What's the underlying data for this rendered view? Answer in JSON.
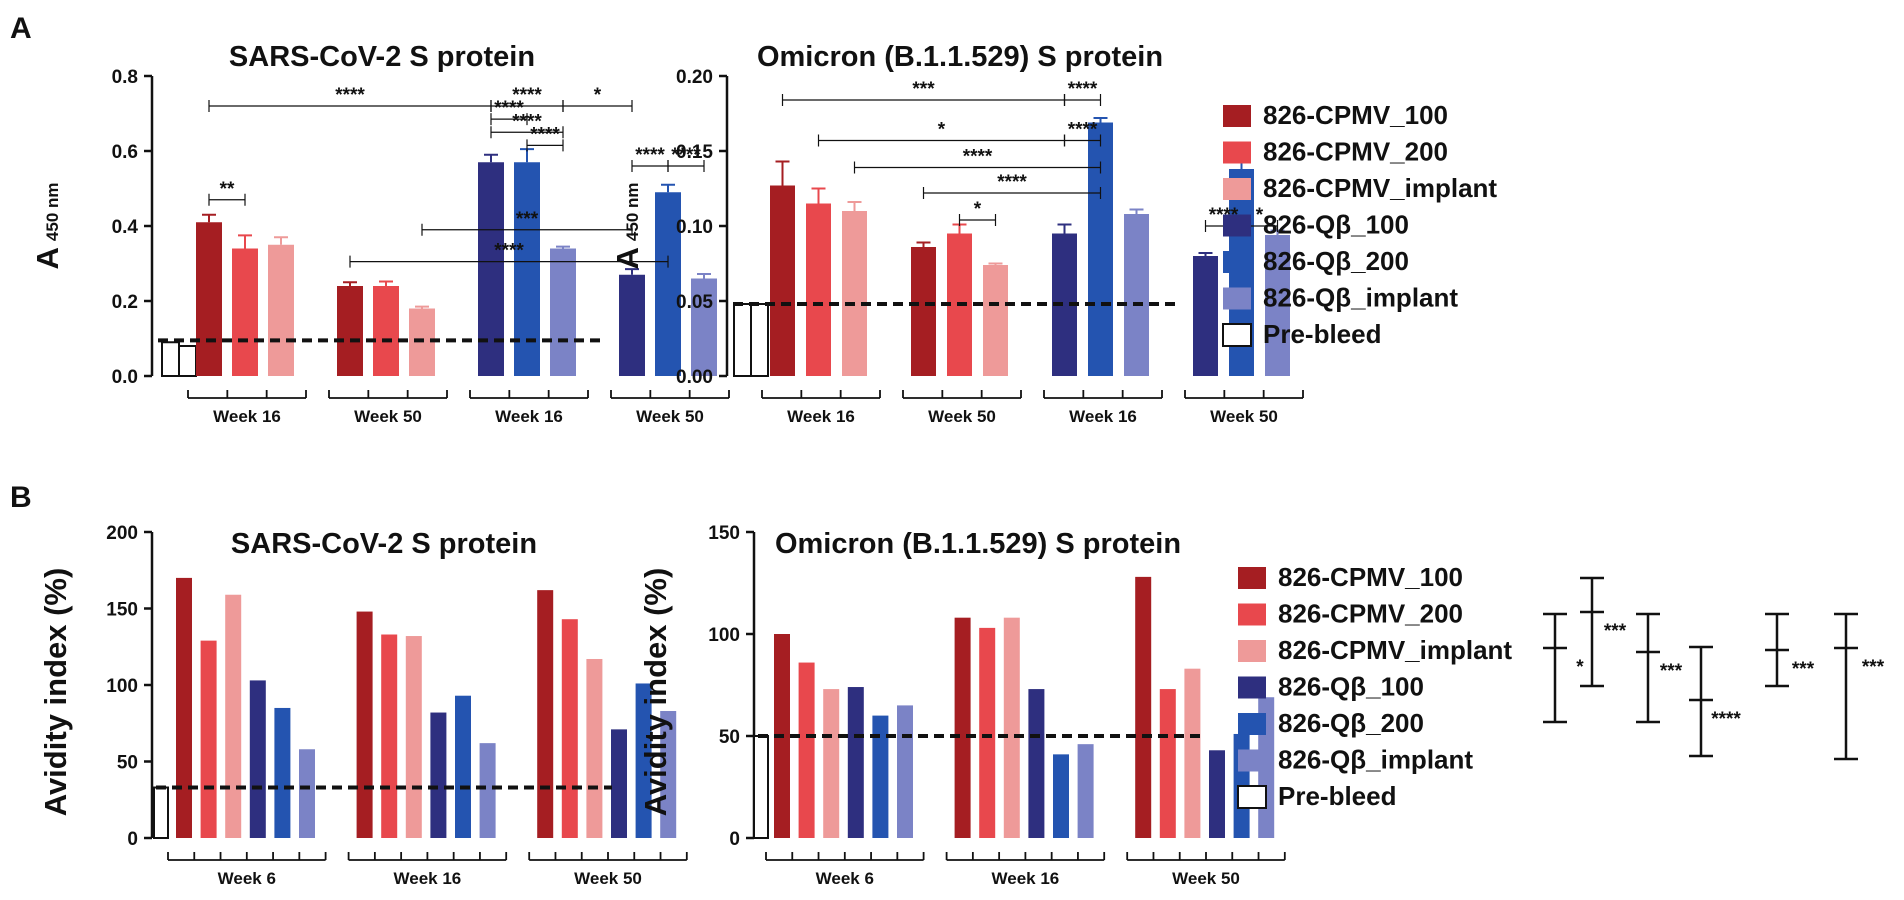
{
  "panels": {
    "A": "A",
    "B": "B"
  },
  "legend": [
    {
      "label": "826-CPMV_100",
      "color": "#a51e22"
    },
    {
      "label": "826-CPMV_200",
      "color": "#e8484d"
    },
    {
      "label": "826-CPMV_implant",
      "color": "#ee9a99"
    },
    {
      "label": "826-Qβ_100",
      "color": "#2e2f7f"
    },
    {
      "label": "826-Qβ_200",
      "color": "#2454b0"
    },
    {
      "label": "826-Qβ_implant",
      "color": "#7b83c6"
    },
    {
      "label": "Pre-bleed",
      "color": "#ffffff"
    }
  ],
  "chart_data": [
    {
      "id": "a1",
      "type": "bar",
      "title": "SARS-CoV-2 S protein",
      "ylabel_main": "A",
      "ylabel_sub": "450 nm",
      "ylim": [
        0,
        0.8
      ],
      "yticks": [
        "0.0",
        "0.2",
        "0.4",
        "0.6",
        "0.8"
      ],
      "groups": [
        "Week 16",
        "Week 50",
        "Week 16",
        "Week 50"
      ],
      "prebleed": [
        0.09,
        0.08
      ],
      "baseline": 0.095,
      "bars": [
        {
          "series": "826-CPMV_100",
          "value": 0.41,
          "err": 0.02
        },
        {
          "series": "826-CPMV_200",
          "value": 0.34,
          "err": 0.035
        },
        {
          "series": "826-CPMV_implant",
          "value": 0.35,
          "err": 0.02
        },
        {
          "series": "826-CPMV_100",
          "value": 0.24,
          "err": 0.01
        },
        {
          "series": "826-CPMV_200",
          "value": 0.24,
          "err": 0.012
        },
        {
          "series": "826-CPMV_implant",
          "value": 0.18,
          "err": 0.005
        },
        {
          "series": "826-Qβ_100",
          "value": 0.57,
          "err": 0.02
        },
        {
          "series": "826-Qβ_200",
          "value": 0.57,
          "err": 0.035
        },
        {
          "series": "826-Qβ_implant",
          "value": 0.34,
          "err": 0.005
        },
        {
          "series": "826-Qβ_100",
          "value": 0.27,
          "err": 0.015
        },
        {
          "series": "826-Qβ_200",
          "value": 0.49,
          "err": 0.02
        },
        {
          "series": "826-Qβ_implant",
          "value": 0.26,
          "err": 0.012
        }
      ],
      "significance": [
        {
          "from": 0,
          "to": 6,
          "y": 0.72,
          "label": "****"
        },
        {
          "from": 6,
          "to": 8,
          "y": 0.72,
          "label": "****"
        },
        {
          "from": 8,
          "to": 9,
          "y": 0.72,
          "label": "*"
        },
        {
          "from": 6,
          "to": 7,
          "y": 0.685,
          "label": "****"
        },
        {
          "from": 6,
          "to": 8,
          "y": 0.65,
          "label": "****"
        },
        {
          "from": 7,
          "to": 8,
          "y": 0.615,
          "label": "****"
        },
        {
          "from": 0,
          "to": 1,
          "y": 0.47,
          "label": "**"
        },
        {
          "from": 9,
          "to": 10,
          "y": 0.56,
          "label": "****"
        },
        {
          "from": 10,
          "to": 11,
          "y": 0.56,
          "label": "****"
        },
        {
          "from": 5,
          "to": 9,
          "y": 0.39,
          "label": "***"
        },
        {
          "from": 3,
          "to": 10,
          "y": 0.305,
          "label": "****"
        }
      ]
    },
    {
      "id": "a2",
      "type": "bar",
      "title": "Omicron (B.1.1.529) S protein",
      "ylabel_main": "A",
      "ylabel_sub": "450 nm",
      "ylim": [
        0,
        0.2
      ],
      "yticks": [
        "0.00",
        "0.05",
        "0.10",
        "0.15",
        "0.20"
      ],
      "groups": [
        "Week 16",
        "Week 50",
        "Week 16",
        "Week 50"
      ],
      "prebleed": [
        0.048,
        0.048
      ],
      "baseline": 0.048,
      "bars": [
        {
          "series": "826-CPMV_100",
          "value": 0.127,
          "err": 0.016
        },
        {
          "series": "826-CPMV_200",
          "value": 0.115,
          "err": 0.01
        },
        {
          "series": "826-CPMV_implant",
          "value": 0.11,
          "err": 0.006
        },
        {
          "series": "826-CPMV_100",
          "value": 0.086,
          "err": 0.003
        },
        {
          "series": "826-CPMV_200",
          "value": 0.095,
          "err": 0.006
        },
        {
          "series": "826-CPMV_implant",
          "value": 0.074,
          "err": 0.001
        },
        {
          "series": "826-Qβ_100",
          "value": 0.095,
          "err": 0.006
        },
        {
          "series": "826-Qβ_200",
          "value": 0.169,
          "err": 0.003
        },
        {
          "series": "826-Qβ_implant",
          "value": 0.108,
          "err": 0.003
        },
        {
          "series": "826-Qβ_100",
          "value": 0.08,
          "err": 0.002
        },
        {
          "series": "826-Qβ_200",
          "value": 0.138,
          "err": 0.006
        },
        {
          "series": "826-Qβ_implant",
          "value": 0.094,
          "err": 0.003
        }
      ],
      "significance": [
        {
          "from": 0,
          "to": 6,
          "y": 0.184,
          "label": "***"
        },
        {
          "from": 6,
          "to": 7,
          "y": 0.184,
          "label": "****"
        },
        {
          "from": 1,
          "to": 6,
          "y": 0.157,
          "label": "*"
        },
        {
          "from": 6,
          "to": 7,
          "y": 0.157,
          "label": "****"
        },
        {
          "from": 2,
          "to": 7,
          "y": 0.139,
          "label": "****"
        },
        {
          "from": 3,
          "to": 7,
          "y": 0.122,
          "label": "****"
        },
        {
          "from": 4,
          "to": 5,
          "y": 0.104,
          "label": "*"
        },
        {
          "from": 9,
          "to": 10,
          "y": 0.1,
          "label": "****"
        },
        {
          "from": 10,
          "to": 11,
          "y": 0.1,
          "label": "*"
        }
      ]
    },
    {
      "id": "b1",
      "type": "bar",
      "title": "SARS-CoV-2 S protein",
      "ylabel_main": "Avidity index (%)",
      "ylim": [
        0,
        200
      ],
      "yticks": [
        "0",
        "50",
        "100",
        "150",
        "200"
      ],
      "groups": [
        "Week 6",
        "Week 16",
        "Week 50"
      ],
      "prebleed": [
        33
      ],
      "baseline": 33,
      "bars": [
        {
          "series": "826-CPMV_100",
          "value": 170
        },
        {
          "series": "826-CPMV_200",
          "value": 129
        },
        {
          "series": "826-CPMV_implant",
          "value": 159
        },
        {
          "series": "826-Qβ_100",
          "value": 103
        },
        {
          "series": "826-Qβ_200",
          "value": 85
        },
        {
          "series": "826-Qβ_implant",
          "value": 58
        },
        {
          "series": "826-CPMV_100",
          "value": 148
        },
        {
          "series": "826-CPMV_200",
          "value": 133
        },
        {
          "series": "826-CPMV_implant",
          "value": 132
        },
        {
          "series": "826-Qβ_100",
          "value": 82
        },
        {
          "series": "826-Qβ_200",
          "value": 93
        },
        {
          "series": "826-Qβ_implant",
          "value": 62
        },
        {
          "series": "826-CPMV_100",
          "value": 162
        },
        {
          "series": "826-CPMV_200",
          "value": 143
        },
        {
          "series": "826-CPMV_implant",
          "value": 117
        },
        {
          "series": "826-Qβ_100",
          "value": 71
        },
        {
          "series": "826-Qβ_200",
          "value": 101
        },
        {
          "series": "826-Qβ_implant",
          "value": 83
        }
      ]
    },
    {
      "id": "b2",
      "type": "bar",
      "title": "Omicron (B.1.1.529) S protein",
      "ylabel_main": "Avidity index (%)",
      "ylim": [
        0,
        150
      ],
      "yticks": [
        "0",
        "50",
        "100",
        "150"
      ],
      "groups": [
        "Week 6",
        "Week 16",
        "Week 50"
      ],
      "prebleed": [
        50
      ],
      "baseline": 50,
      "bars": [
        {
          "series": "826-CPMV_100",
          "value": 100
        },
        {
          "series": "826-CPMV_200",
          "value": 86
        },
        {
          "series": "826-CPMV_implant",
          "value": 73
        },
        {
          "series": "826-Qβ_100",
          "value": 74
        },
        {
          "series": "826-Qβ_200",
          "value": 60
        },
        {
          "series": "826-Qβ_implant",
          "value": 65
        },
        {
          "series": "826-CPMV_100",
          "value": 108
        },
        {
          "series": "826-CPMV_200",
          "value": 103
        },
        {
          "series": "826-CPMV_implant",
          "value": 108
        },
        {
          "series": "826-Qβ_100",
          "value": 73
        },
        {
          "series": "826-Qβ_200",
          "value": 41
        },
        {
          "series": "826-Qβ_implant",
          "value": 46
        },
        {
          "series": "826-CPMV_100",
          "value": 128
        },
        {
          "series": "826-CPMV_200",
          "value": 73
        },
        {
          "series": "826-CPMV_implant",
          "value": 83
        },
        {
          "series": "826-Qβ_100",
          "value": 43
        },
        {
          "series": "826-Qβ_200",
          "value": 51
        },
        {
          "series": "826-Qβ_implant",
          "value": 69
        }
      ]
    }
  ],
  "avidity_significance": [
    "*",
    "***",
    "***",
    "****",
    "***",
    "***"
  ]
}
